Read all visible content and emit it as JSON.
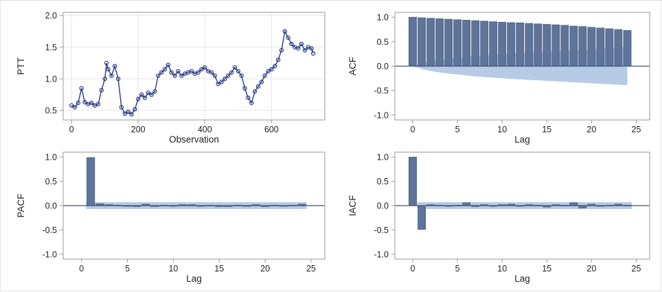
{
  "chart_data": [
    {
      "id": "ptt",
      "type": "line",
      "xlabel": "Observation",
      "ylabel": "PTT",
      "xlim": [
        -25,
        760
      ],
      "ylim": [
        0.35,
        2.05
      ],
      "xticks": [
        0,
        200,
        400,
        600
      ],
      "yticks": [
        0.5,
        1.0,
        1.5,
        2.0
      ],
      "ytick_labels": [
        "0.5",
        "1.0",
        "1.5",
        "2.0"
      ],
      "grid": true,
      "marker": "circle",
      "series": [
        {
          "x": [
            0,
            10,
            20,
            30,
            40,
            50,
            60,
            70,
            80,
            90,
            100,
            105,
            110,
            120,
            130,
            140,
            150,
            160,
            170,
            180,
            190,
            200,
            210,
            220,
            230,
            240,
            250,
            260,
            270,
            280,
            290,
            300,
            310,
            320,
            330,
            340,
            350,
            360,
            370,
            380,
            390,
            400,
            410,
            420,
            430,
            440,
            450,
            460,
            470,
            480,
            490,
            500,
            510,
            520,
            530,
            540,
            550,
            560,
            570,
            580,
            590,
            600,
            610,
            620,
            630,
            640,
            650,
            660,
            670,
            680,
            690,
            700,
            710,
            720,
            725
          ],
          "y": [
            0.58,
            0.55,
            0.62,
            0.85,
            0.63,
            0.6,
            0.62,
            0.58,
            0.6,
            0.82,
            1.0,
            1.25,
            1.15,
            1.05,
            1.2,
            1.0,
            0.55,
            0.45,
            0.48,
            0.44,
            0.52,
            0.68,
            0.75,
            0.7,
            0.78,
            0.75,
            0.8,
            1.05,
            1.1,
            1.15,
            1.22,
            1.1,
            1.05,
            1.12,
            1.05,
            1.08,
            1.1,
            1.12,
            1.08,
            1.1,
            1.15,
            1.18,
            1.12,
            1.1,
            1.05,
            0.92,
            0.95,
            1.0,
            1.05,
            1.1,
            1.18,
            1.12,
            1.05,
            0.85,
            0.7,
            0.62,
            0.8,
            0.88,
            0.95,
            1.05,
            1.12,
            1.15,
            1.2,
            1.3,
            1.45,
            1.75,
            1.65,
            1.55,
            1.5,
            1.48,
            1.55,
            1.45,
            1.5,
            1.48,
            1.4
          ]
        }
      ]
    },
    {
      "id": "acf",
      "type": "bar",
      "xlabel": "Lag",
      "ylabel": "ACF",
      "xlim": [
        -2,
        26.5
      ],
      "ylim": [
        -1.1,
        1.1
      ],
      "xticks": [
        0,
        5,
        10,
        15,
        20,
        25
      ],
      "yticks": [
        -1.0,
        -0.5,
        0.0,
        0.5,
        1.0
      ],
      "ytick_labels": [
        "-1.0",
        "-0.5",
        "0.0",
        "0.5",
        "1.0"
      ],
      "grid": false,
      "lags": [
        0,
        1,
        2,
        3,
        4,
        5,
        6,
        7,
        8,
        9,
        10,
        11,
        12,
        13,
        14,
        15,
        16,
        17,
        18,
        19,
        20,
        21,
        22,
        23,
        24
      ],
      "values": [
        1.0,
        0.99,
        0.98,
        0.97,
        0.96,
        0.95,
        0.94,
        0.93,
        0.92,
        0.91,
        0.9,
        0.89,
        0.885,
        0.875,
        0.865,
        0.855,
        0.845,
        0.835,
        0.82,
        0.81,
        0.795,
        0.78,
        0.765,
        0.75,
        0.73
      ],
      "band": [
        0,
        0.06,
        0.1,
        0.13,
        0.15,
        0.17,
        0.19,
        0.21,
        0.22,
        0.235,
        0.25,
        0.26,
        0.27,
        0.28,
        0.29,
        0.3,
        0.31,
        0.32,
        0.33,
        0.34,
        0.35,
        0.36,
        0.37,
        0.38,
        0.39
      ]
    },
    {
      "id": "pacf",
      "type": "bar",
      "xlabel": "Lag",
      "ylabel": "PACF",
      "xlim": [
        -2,
        26.5
      ],
      "ylim": [
        -1.1,
        1.1
      ],
      "xticks": [
        0,
        5,
        10,
        15,
        20,
        25
      ],
      "yticks": [
        -1.0,
        -0.5,
        0.0,
        0.5,
        1.0
      ],
      "ytick_labels": [
        "-1.0",
        "-0.5",
        "0.0",
        "0.5",
        "1.0"
      ],
      "grid": false,
      "lags": [
        1,
        2,
        3,
        4,
        5,
        6,
        7,
        8,
        9,
        10,
        11,
        12,
        13,
        14,
        15,
        16,
        17,
        18,
        19,
        20,
        21,
        22,
        23,
        24
      ],
      "values": [
        0.99,
        0.04,
        0.02,
        0.01,
        -0.01,
        -0.02,
        0.03,
        -0.02,
        0.01,
        -0.01,
        0.02,
        0.02,
        -0.01,
        0.01,
        -0.02,
        -0.02,
        0.01,
        -0.01,
        0.02,
        -0.02,
        0.01,
        -0.01,
        0.01,
        0.03
      ],
      "band": 0.07,
      "band_start": 1
    },
    {
      "id": "iacf",
      "type": "bar",
      "xlabel": "Lag",
      "ylabel": "IACF",
      "xlim": [
        -2,
        26.5
      ],
      "ylim": [
        -1.1,
        1.1
      ],
      "xticks": [
        0,
        5,
        10,
        15,
        20,
        25
      ],
      "yticks": [
        -1.0,
        -0.5,
        0.0,
        0.5,
        1.0
      ],
      "ytick_labels": [
        "-1.0",
        "-0.5",
        "0.0",
        "0.5",
        "1.0"
      ],
      "grid": false,
      "lags": [
        0,
        1,
        2,
        3,
        4,
        5,
        6,
        7,
        8,
        9,
        10,
        11,
        12,
        13,
        14,
        15,
        16,
        17,
        18,
        19,
        20,
        21,
        22,
        23,
        24
      ],
      "values": [
        1.0,
        -0.49,
        0.02,
        0.01,
        -0.01,
        0.01,
        0.06,
        -0.02,
        0.02,
        -0.01,
        0.02,
        0.03,
        -0.01,
        0.02,
        0.01,
        -0.03,
        0.02,
        0.01,
        0.06,
        -0.05,
        0.03,
        -0.01,
        0.01,
        0.03,
        0.01
      ],
      "band": 0.07,
      "band_start": 1
    }
  ],
  "colors": {
    "bar_fill": "#5e7499",
    "bar_edge": "#3d5278",
    "band_fill": "#b7cbe6",
    "line": "#2a3a8c",
    "zero_line": "#3d5278",
    "axis": "#9a9a9a",
    "grid": "#e6e6e6"
  }
}
